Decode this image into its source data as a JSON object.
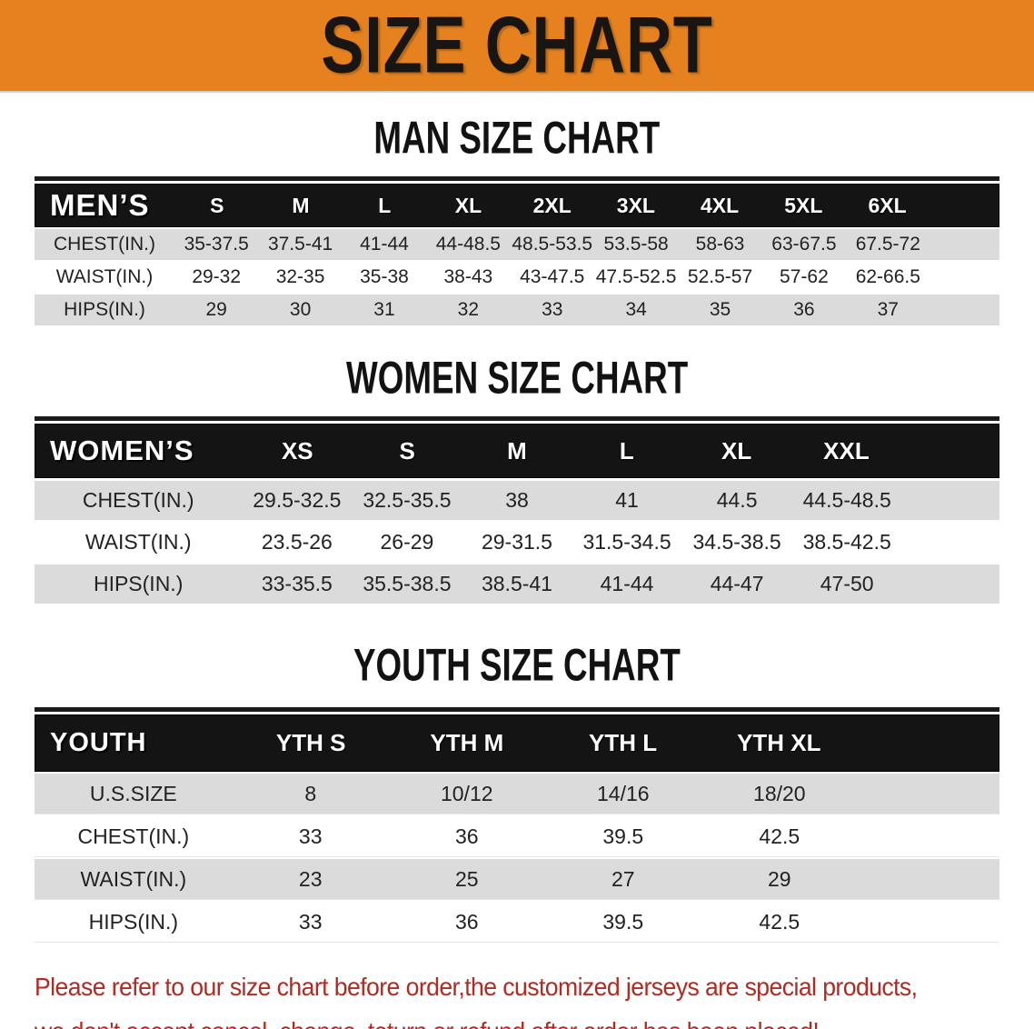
{
  "banner": {
    "title": "SIZE CHART",
    "bg_color": "#E5821F"
  },
  "colors": {
    "header_bar": "#141414",
    "row_gray": "#DBDBDB",
    "notice_red": "#B02B22"
  },
  "sections": [
    {
      "key": "men",
      "heading": "MAN SIZE CHART",
      "table": {
        "label_header": "MEN’S",
        "col_headers": [
          "S",
          "M",
          "L",
          "XL",
          "2XL",
          "3XL",
          "4XL",
          "5XL",
          "6XL"
        ],
        "rows": [
          {
            "label": "CHEST(IN.)",
            "values": [
              "35-37.5",
              "37.5-41",
              "41-44",
              "44-48.5",
              "48.5-53.5",
              "53.5-58",
              "58-63",
              "63-67.5",
              "67.5-72"
            ]
          },
          {
            "label": "WAIST(IN.)",
            "values": [
              "29-32",
              "32-35",
              "35-38",
              "38-43",
              "43-47.5",
              "47.5-52.5",
              "52.5-57",
              "57-62",
              "62-66.5"
            ]
          },
          {
            "label": "HIPS(IN.)",
            "values": [
              "29",
              "30",
              "31",
              "32",
              "33",
              "34",
              "35",
              "36",
              "37"
            ]
          }
        ]
      }
    },
    {
      "key": "women",
      "heading": "WOMEN SIZE CHART",
      "table": {
        "label_header": "WOMEN’S",
        "col_headers": [
          "XS",
          "S",
          "M",
          "L",
          "XL",
          "XXL"
        ],
        "rows": [
          {
            "label": "CHEST(IN.)",
            "values": [
              "29.5-32.5",
              "32.5-35.5",
              "38",
              "41",
              "44.5",
              "44.5-48.5"
            ]
          },
          {
            "label": "WAIST(IN.)",
            "values": [
              "23.5-26",
              "26-29",
              "29-31.5",
              "31.5-34.5",
              "34.5-38.5",
              "38.5-42.5"
            ]
          },
          {
            "label": "HIPS(IN.)",
            "values": [
              "33-35.5",
              "35.5-38.5",
              "38.5-41",
              "41-44",
              "44-47",
              "47-50"
            ]
          }
        ]
      }
    },
    {
      "key": "youth",
      "heading": "YOUTH SIZE CHART",
      "table": {
        "label_header": "YOUTH",
        "col_headers": [
          "YTH S",
          "YTH M",
          "YTH L",
          "YTH XL"
        ],
        "rows": [
          {
            "label": "U.S.SIZE",
            "values": [
              "8",
              "10/12",
              "14/16",
              "18/20"
            ]
          },
          {
            "label": "CHEST(IN.)",
            "values": [
              "33",
              "36",
              "39.5",
              "42.5"
            ]
          },
          {
            "label": "WAIST(IN.)",
            "values": [
              "23",
              "25",
              "27",
              "29"
            ]
          },
          {
            "label": "HIPS(IN.)",
            "values": [
              "33",
              "36",
              "39.5",
              "42.5"
            ]
          }
        ]
      }
    }
  ],
  "footer": {
    "line1": "Please refer to our size chart before order,the customized jerseys are special products,",
    "line2": "we don't accept cancel, change, teturn or refund after order has been placed!"
  }
}
